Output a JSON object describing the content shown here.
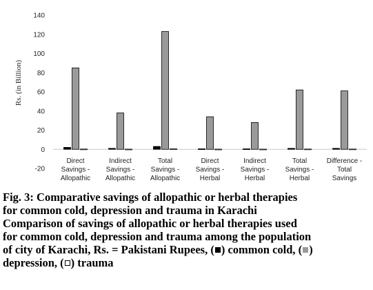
{
  "chart_data": {
    "type": "bar",
    "ylabel": "Rs. (in Billion)",
    "ylim": [
      -20,
      140
    ],
    "yticks": [
      -20,
      0,
      20,
      40,
      60,
      80,
      100,
      120,
      140
    ],
    "categories": [
      [
        "Direct",
        "Savings -",
        "Allopathic"
      ],
      [
        "Indirect",
        "Savings -",
        "Allopathic"
      ],
      [
        "Total",
        "Savings -",
        "Allopathic"
      ],
      [
        "Direct",
        "Savings -",
        "Herbal"
      ],
      [
        "Indirect",
        "Savings -",
        "Herbal"
      ],
      [
        "Total",
        "Savings -",
        "Herbal"
      ],
      [
        "Difference -",
        "Total",
        "Savings"
      ]
    ],
    "series": [
      {
        "values": [
          2,
          1,
          3,
          0.5,
          0.5,
          1,
          1
        ],
        "color": "#000000"
      },
      {
        "values": [
          85,
          38,
          123,
          34,
          28,
          62,
          61
        ],
        "color": "#9a9a9a"
      },
      {
        "values": [
          0.3,
          0.2,
          0.5,
          0.2,
          0.2,
          0.3,
          0.3
        ],
        "color": "#ffffff"
      }
    ],
    "grid": false,
    "legend": "none"
  },
  "caption": {
    "title_line1": "Fig. 3: Comparative savings of allopathic or herbal therapies",
    "title_line2": "for common cold, depression and trauma in Karachi",
    "desc_line1": "Comparison of savings of allopathic or herbal therapies used",
    "desc_line2": "for common cold, depression and trauma among the population",
    "desc_line3_a": "of city of Karachi, Rs. = Pakistani Rupees, (",
    "desc_line3_b": ") common cold, (",
    "desc_line3_c": ")",
    "desc_line4_a": "depression, (",
    "desc_line4_b": ") trauma"
  }
}
